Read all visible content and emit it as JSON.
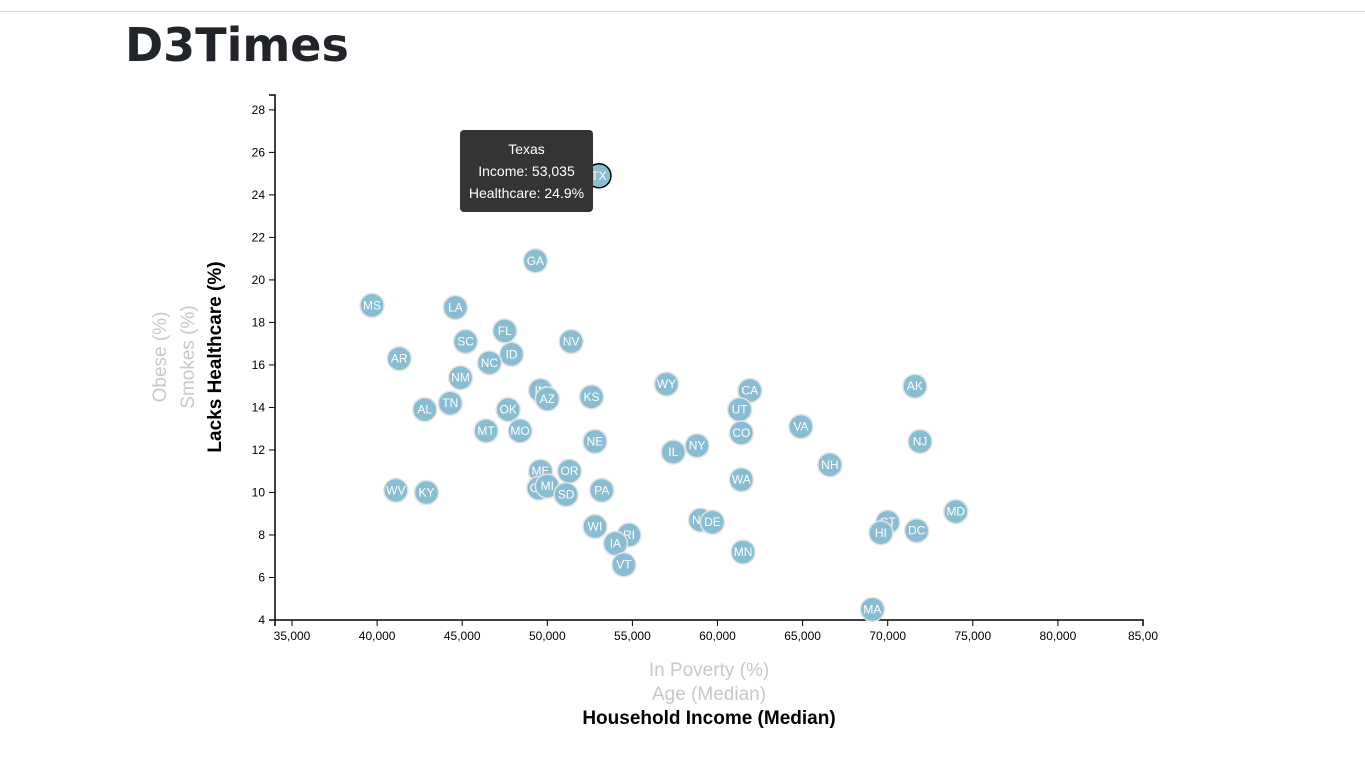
{
  "page": {
    "title": "D3Times"
  },
  "tooltip": {
    "state": "Texas",
    "income_text": "Income: 53,035",
    "healthcare_text": "Healthcare: 24.9%"
  },
  "chart_data": {
    "type": "scatter",
    "title": "",
    "x_axis": {
      "labels": [
        {
          "text": "In Poverty (%)",
          "active": false
        },
        {
          "text": "Age (Median)",
          "active": false
        },
        {
          "text": "Household Income (Median)",
          "active": true
        }
      ],
      "range": [
        34000,
        85000
      ],
      "ticks": [
        "35,000",
        "40,000",
        "45,000",
        "50,000",
        "55,000",
        "60,000",
        "65,000",
        "70,000",
        "75,000",
        "80,000",
        "85,00"
      ]
    },
    "y_axis": {
      "labels": [
        {
          "text": "Lacks Healthcare (%)",
          "active": true
        },
        {
          "text": "Smokes (%)",
          "active": false
        },
        {
          "text": "Obese (%)",
          "active": false
        }
      ],
      "range": [
        4,
        28.7
      ],
      "ticks": [
        "4",
        "6",
        "8",
        "10",
        "12",
        "14",
        "16",
        "18",
        "20",
        "22",
        "24",
        "26",
        "28"
      ]
    },
    "grid": false,
    "highlighted": "TX",
    "colors": {
      "point": "#89bdd3",
      "point_stroke": "#e3e3e3",
      "highlight_stroke": "#000000",
      "tooltip_bg": "#343434"
    },
    "points": [
      {
        "abbr": "TX",
        "income": 53035,
        "healthcare": 24.9
      },
      {
        "abbr": "GA",
        "income": 49300,
        "healthcare": 20.9
      },
      {
        "abbr": "MS",
        "income": 39700,
        "healthcare": 18.8
      },
      {
        "abbr": "LA",
        "income": 44600,
        "healthcare": 18.7
      },
      {
        "abbr": "FL",
        "income": 47500,
        "healthcare": 17.6
      },
      {
        "abbr": "SC",
        "income": 45200,
        "healthcare": 17.1
      },
      {
        "abbr": "NV",
        "income": 51400,
        "healthcare": 17.1
      },
      {
        "abbr": "AR",
        "income": 41300,
        "healthcare": 16.3
      },
      {
        "abbr": "ID",
        "income": 47900,
        "healthcare": 16.5
      },
      {
        "abbr": "NC",
        "income": 46600,
        "healthcare": 16.1
      },
      {
        "abbr": "NM",
        "income": 44900,
        "healthcare": 15.4
      },
      {
        "abbr": "WY",
        "income": 57000,
        "healthcare": 15.1
      },
      {
        "abbr": "AK",
        "income": 71600,
        "healthcare": 15.0
      },
      {
        "abbr": "IN",
        "income": 49600,
        "healthcare": 14.8
      },
      {
        "abbr": "CA",
        "income": 61900,
        "healthcare": 14.8
      },
      {
        "abbr": "AZ",
        "income": 50000,
        "healthcare": 14.4
      },
      {
        "abbr": "KS",
        "income": 52600,
        "healthcare": 14.5
      },
      {
        "abbr": "TN",
        "income": 44300,
        "healthcare": 14.2
      },
      {
        "abbr": "AL",
        "income": 42800,
        "healthcare": 13.9
      },
      {
        "abbr": "OK",
        "income": 47700,
        "healthcare": 13.9
      },
      {
        "abbr": "UT",
        "income": 61300,
        "healthcare": 13.9
      },
      {
        "abbr": "VA",
        "income": 64900,
        "healthcare": 13.1
      },
      {
        "abbr": "MT",
        "income": 46400,
        "healthcare": 12.9
      },
      {
        "abbr": "MO",
        "income": 48400,
        "healthcare": 12.9
      },
      {
        "abbr": "CO",
        "income": 61400,
        "healthcare": 12.8
      },
      {
        "abbr": "NJ",
        "income": 71900,
        "healthcare": 12.4
      },
      {
        "abbr": "NE",
        "income": 52800,
        "healthcare": 12.4
      },
      {
        "abbr": "NY",
        "income": 58800,
        "healthcare": 12.2
      },
      {
        "abbr": "IL",
        "income": 57400,
        "healthcare": 11.9
      },
      {
        "abbr": "NH",
        "income": 66600,
        "healthcare": 11.3
      },
      {
        "abbr": "ME",
        "income": 49600,
        "healthcare": 11.0
      },
      {
        "abbr": "OR",
        "income": 51300,
        "healthcare": 11.0
      },
      {
        "abbr": "WA",
        "income": 61400,
        "healthcare": 10.6
      },
      {
        "abbr": "OH",
        "income": 49500,
        "healthcare": 10.2
      },
      {
        "abbr": "MI",
        "income": 50000,
        "healthcare": 10.3
      },
      {
        "abbr": "SD",
        "income": 51100,
        "healthcare": 9.9
      },
      {
        "abbr": "PA",
        "income": 53200,
        "healthcare": 10.1
      },
      {
        "abbr": "WV",
        "income": 41100,
        "healthcare": 10.1
      },
      {
        "abbr": "KY",
        "income": 42900,
        "healthcare": 10.0
      },
      {
        "abbr": "MD",
        "income": 74000,
        "healthcare": 9.1
      },
      {
        "abbr": "ND",
        "income": 59000,
        "healthcare": 8.7
      },
      {
        "abbr": "DE",
        "income": 59700,
        "healthcare": 8.6
      },
      {
        "abbr": "CT",
        "income": 70000,
        "healthcare": 8.6
      },
      {
        "abbr": "WI",
        "income": 52800,
        "healthcare": 8.4
      },
      {
        "abbr": "DC",
        "income": 71700,
        "healthcare": 8.2
      },
      {
        "abbr": "HI",
        "income": 69600,
        "healthcare": 8.1
      },
      {
        "abbr": "RI",
        "income": 54800,
        "healthcare": 8.0
      },
      {
        "abbr": "IA",
        "income": 54000,
        "healthcare": 7.6
      },
      {
        "abbr": "MN",
        "income": 61500,
        "healthcare": 7.2
      },
      {
        "abbr": "VT",
        "income": 54500,
        "healthcare": 6.6
      },
      {
        "abbr": "MA",
        "income": 69100,
        "healthcare": 4.5
      }
    ]
  }
}
